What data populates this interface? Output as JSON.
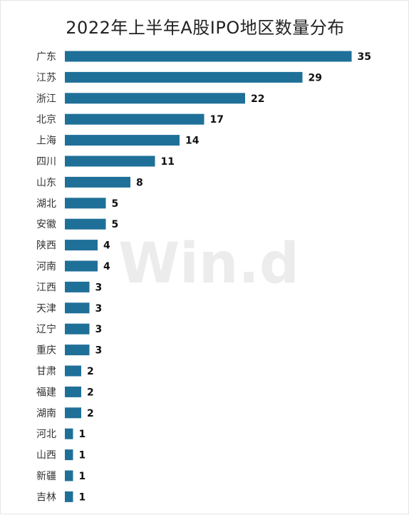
{
  "colors": {
    "bar": "#1f7098",
    "label": "#333333",
    "value": "#111111",
    "watermark": "#ececec"
  },
  "watermark": "Win.d",
  "chart_data": {
    "type": "bar",
    "orientation": "horizontal",
    "title": "2022年上半年A股IPO地区数量分布",
    "xlabel": "",
    "ylabel": "",
    "grid": false,
    "categories": [
      "广东",
      "江苏",
      "浙江",
      "北京",
      "上海",
      "四川",
      "山东",
      "湖北",
      "安徽",
      "陕西",
      "河南",
      "江西",
      "天津",
      "辽宁",
      "重庆",
      "甘肃",
      "福建",
      "湖南",
      "河北",
      "山西",
      "新疆",
      "吉林"
    ],
    "values": [
      35,
      29,
      22,
      17,
      14,
      11,
      8,
      5,
      5,
      4,
      4,
      3,
      3,
      3,
      3,
      2,
      2,
      2,
      1,
      1,
      1,
      1
    ]
  }
}
